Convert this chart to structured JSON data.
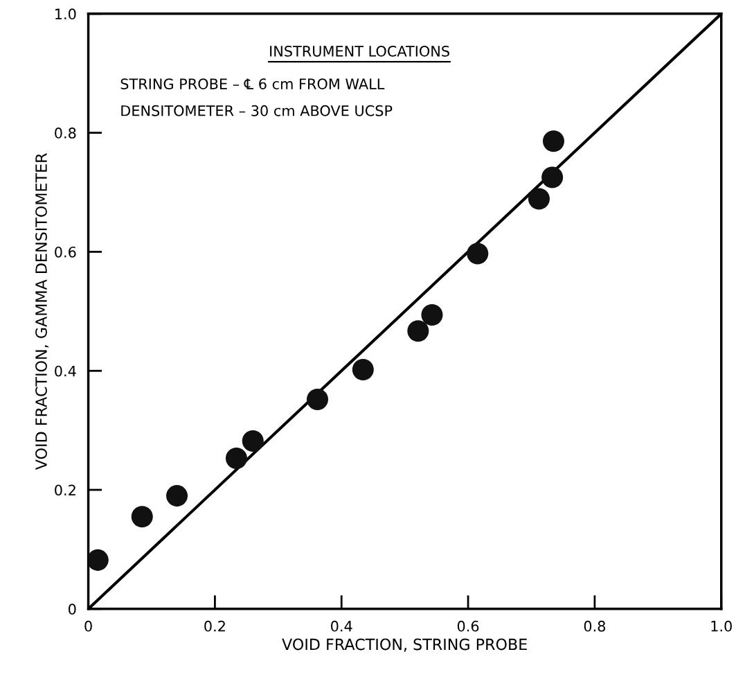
{
  "chart_data": {
    "type": "scatter",
    "xlabel": "VOID FRACTION, STRING PROBE",
    "ylabel": "VOID FRACTION, GAMMA DENSITOMETER",
    "annotations": [
      "INSTRUMENT LOCATIONS",
      "STRING PROBE – ℄ 6 cm FROM WALL",
      "DENSITOMETER – 30 cm ABOVE UCSP"
    ],
    "series": [
      {
        "color": "#111111",
        "marker": "circle",
        "x": [
          0.015,
          0.085,
          0.14,
          0.234,
          0.26,
          0.362,
          0.434,
          0.521,
          0.543,
          0.615,
          0.712,
          0.733,
          0.735
        ],
        "values": [
          0.082,
          0.155,
          0.19,
          0.253,
          0.282,
          0.352,
          0.402,
          0.467,
          0.494,
          0.597,
          0.689,
          0.725,
          0.786
        ]
      },
      {
        "type": "line",
        "color": "#000000",
        "line_style": "solid",
        "x": [
          0,
          1
        ],
        "values": [
          0,
          1
        ]
      }
    ],
    "xlim": [
      0,
      1
    ],
    "ylim": [
      0,
      1
    ],
    "xticks": [
      0,
      0.2,
      0.4,
      0.6,
      0.8,
      {
        "value": 1,
        "label": "1.0"
      }
    ],
    "yticks": [
      0,
      0.2,
      0.4,
      0.6,
      0.8,
      {
        "value": 1,
        "label": "1.0"
      }
    ],
    "grid": false
  }
}
